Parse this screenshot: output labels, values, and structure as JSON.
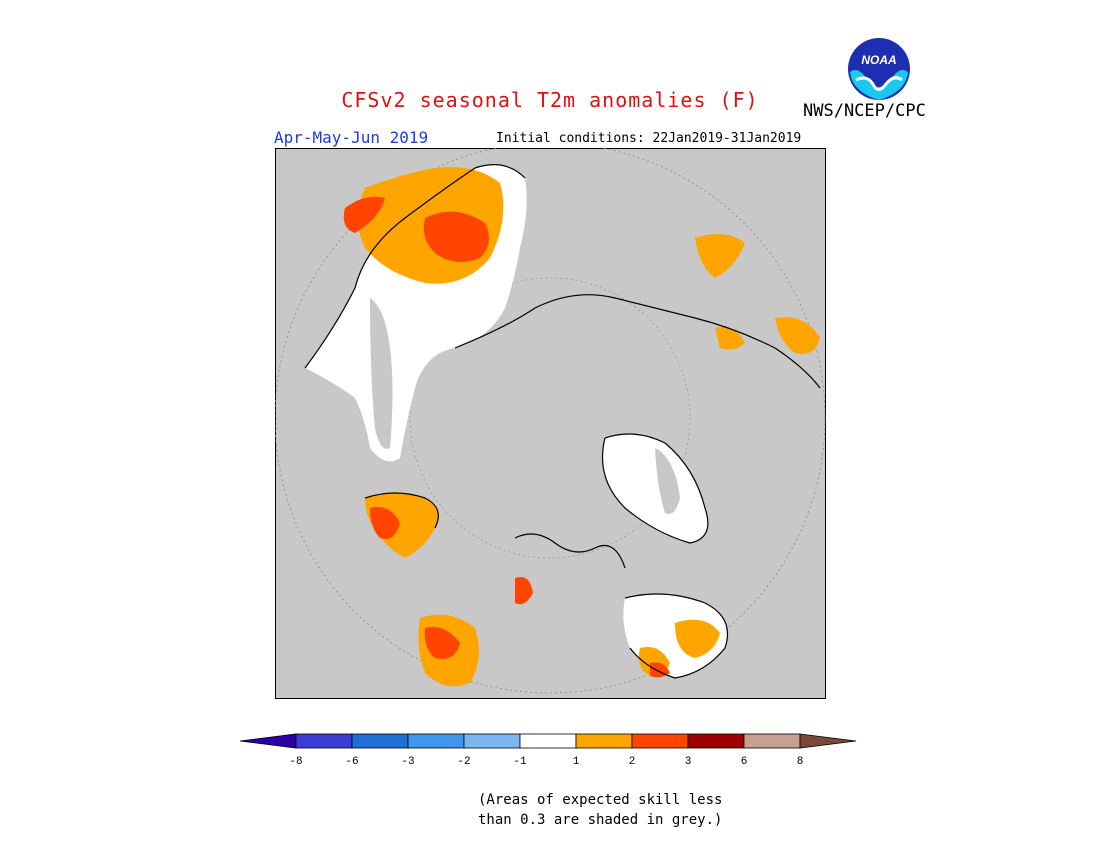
{
  "header": {
    "title": "CFSv2 seasonal T2m anomalies (F)",
    "period": "Apr-May-Jun 2019",
    "initial_conditions": "Initial conditions: 22Jan2019-31Jan2019",
    "organization": "NWS/NCEP/CPC",
    "logo_text": "NOAA"
  },
  "legend": {
    "tick_labels": [
      "-8",
      "-6",
      "-3",
      "-2",
      "-1",
      "1",
      "2",
      "3",
      "6",
      "8"
    ],
    "colors": [
      "#2b00a8",
      "#3c3cd6",
      "#1f6fd8",
      "#3f96ec",
      "#7ab7ee",
      "#ffffff",
      "#ffa500",
      "#ff4500",
      "#a00000",
      "#c8a090",
      "#7a4a38"
    ]
  },
  "map": {
    "projection": "north polar stereographic",
    "skill_mask_color": "#c8c8c8",
    "land_color": "#ffffff",
    "coastline_color": "#000000"
  },
  "note": {
    "line1": "(Areas of expected skill less",
    "line2": "than 0.3 are shaded in grey.)"
  }
}
